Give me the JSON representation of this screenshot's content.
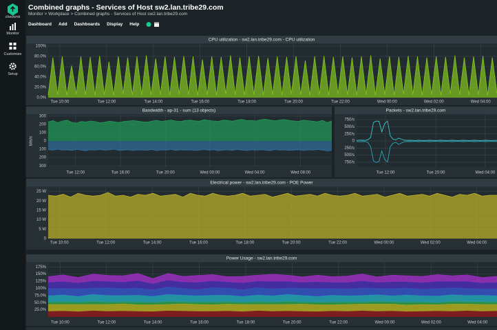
{
  "sidebar": {
    "logo": "checkmk",
    "items": [
      "Monitor",
      "Customize",
      "Setup"
    ]
  },
  "header": {
    "title": "Combined graphs - Services of Host sw2.lan.tribe29.com",
    "breadcrumb": "Monitor > Workplace > Combined graphs - Services of Host sw2.lan.tribe29.com"
  },
  "menu": [
    "Dashboard",
    "Add",
    "Dashboards",
    "Display",
    "Help"
  ],
  "chart_data": [
    {
      "type": "area",
      "title": "CPU utilization - sw2.lan.tribe29.com - CPU utilization",
      "xlim": [
        0,
        96
      ],
      "ylim": [
        0,
        104
      ],
      "yticks": [
        {
          "value": 0,
          "label": "0.0%"
        },
        {
          "value": 20,
          "label": "20.0%"
        },
        {
          "value": 40,
          "label": "40.0%"
        },
        {
          "value": 60,
          "label": "60.0%"
        },
        {
          "value": 80,
          "label": "80.0%"
        },
        {
          "value": 100,
          "label": "100%"
        }
      ],
      "xticks": [
        {
          "value": 2.5,
          "label": "Tue 10:00"
        },
        {
          "value": 12.5,
          "label": "Tue 12:00"
        },
        {
          "value": 22.5,
          "label": "Tue 14:00"
        },
        {
          "value": 32.5,
          "label": "Tue 16:00"
        },
        {
          "value": 42.5,
          "label": "Tue 18:00"
        },
        {
          "value": 52.5,
          "label": "Tue 20:00"
        },
        {
          "value": 62.5,
          "label": "Tue 22:00"
        },
        {
          "value": 72.5,
          "label": "Wed 00:00"
        },
        {
          "value": 82.5,
          "label": "Wed 02:00"
        },
        {
          "value": 92.5,
          "label": "Wed 04:00"
        }
      ],
      "series": [
        {
          "color": "#86c71f",
          "values": [
            5,
            78,
            6,
            80,
            5,
            62,
            7,
            80,
            6,
            79,
            5,
            81,
            6,
            70,
            5,
            80,
            7,
            78,
            5,
            80,
            6,
            82,
            5,
            76,
            6,
            80,
            5,
            79,
            7,
            81,
            6,
            80,
            5,
            74,
            6,
            80,
            5,
            79,
            7,
            82,
            6,
            78,
            5,
            80,
            6,
            81,
            5,
            77,
            6,
            80,
            5,
            79,
            7,
            80,
            6,
            72,
            5,
            80,
            6,
            81,
            5,
            79,
            7,
            80,
            6,
            78,
            5,
            80,
            6,
            82,
            5,
            76,
            6,
            80,
            5,
            79,
            7,
            81,
            6,
            80,
            5,
            78,
            6,
            80,
            5,
            79,
            7,
            82,
            6,
            78,
            5,
            80,
            6,
            81,
            5,
            78,
            8
          ]
        }
      ]
    },
    {
      "type": "area",
      "title": "Bandwidth - ap-31 - sum (13 objects)",
      "ylabel": "bits/s",
      "xlim": [
        0,
        60
      ],
      "ylim": [
        -315,
        315
      ],
      "yticks": [
        {
          "value": -300,
          "label": "300"
        },
        {
          "value": -200,
          "label": "200"
        },
        {
          "value": -100,
          "label": "100"
        },
        0,
        100,
        200,
        300
      ],
      "xticks": [
        {
          "value": 5.8,
          "label": "Tue 12:00"
        },
        {
          "value": 15.3,
          "label": "Tue 16:00"
        },
        {
          "value": 24.8,
          "label": "Tue 20:00"
        },
        {
          "value": 34.2,
          "label": "Wed 00:00"
        },
        {
          "value": 43.7,
          "label": "Wed 04:00"
        },
        {
          "value": 53.4,
          "label": "Wed 08:00"
        }
      ],
      "series": [
        {
          "color": "#1f9d57",
          "values": [
            230,
            245,
            220,
            240,
            250,
            225,
            215,
            235,
            228,
            240,
            232,
            218,
            226,
            238,
            230,
            222,
            235,
            240,
            245,
            238,
            230,
            226,
            240,
            248,
            236,
            244,
            252,
            240,
            234,
            246,
            250,
            242,
            238,
            255,
            248,
            240,
            236,
            250,
            246,
            238,
            252,
            260,
            245,
            248,
            240,
            256,
            262,
            250,
            244,
            252,
            258,
            246,
            240,
            236,
            250,
            244,
            238,
            230,
            248,
            222,
            240
          ]
        },
        {
          "color": "#2f6f9c",
          "values": [
            -105,
            -110,
            -100,
            -112,
            -108,
            -115,
            -102,
            -110,
            -118,
            -106,
            -110,
            -104,
            -112,
            -108,
            -100,
            -114,
            -110,
            -106,
            -116,
            -108,
            -110,
            -112,
            -104,
            -118,
            -108,
            -110,
            -102,
            -114,
            -106,
            -112,
            -108,
            -116,
            -110,
            -104,
            -112,
            -106,
            -118,
            -110,
            -108,
            -114,
            -104,
            -110,
            -116,
            -108,
            -112,
            -106,
            -110,
            -118,
            -104,
            -112,
            -108,
            -114,
            -110,
            -106,
            -116,
            -108,
            -112,
            -104,
            -110,
            -120,
            -115
          ]
        }
      ]
    },
    {
      "type": "line",
      "title": "Packets - sw2.lan.tribe29.com",
      "xlim": [
        0,
        50
      ],
      "ylim": [
        -920,
        920
      ],
      "yticks": [
        {
          "value": -750,
          "label": "750/s"
        },
        {
          "value": -500,
          "label": "500/s"
        },
        {
          "value": -250,
          "label": "250/s"
        },
        0,
        {
          "value": 250,
          "label": "250/s"
        },
        {
          "value": 500,
          "label": "500/s"
        },
        {
          "value": 750,
          "label": "750/s"
        }
      ],
      "xticks": [
        {
          "value": 10.3,
          "label": "Tue 12:00"
        },
        {
          "value": 28.2,
          "label": "Tue 20:00"
        },
        {
          "value": 45.8,
          "label": "Wed 04:00"
        }
      ],
      "series": [
        {
          "color": "#3cc8cc",
          "values": [
            20,
            30,
            25,
            20,
            40,
            120,
            650,
            700,
            690,
            320,
            610,
            700,
            180,
            60,
            40,
            100,
            60,
            30,
            20,
            25,
            20,
            15,
            25,
            20,
            15,
            20,
            25,
            20,
            15,
            20,
            25,
            20,
            15,
            20,
            25,
            20,
            15,
            20,
            25,
            20,
            15,
            20,
            25,
            20,
            15,
            20,
            25,
            20,
            15,
            20,
            20
          ]
        },
        {
          "color": "#2aa9b8",
          "values": [
            -20,
            -30,
            -25,
            -20,
            -50,
            -200,
            -700,
            -760,
            -720,
            -350,
            -650,
            -740,
            -200,
            -80,
            -50,
            -120,
            -70,
            -30,
            -20,
            -25,
            -20,
            -15,
            -25,
            -20,
            -15,
            -20,
            -25,
            -20,
            -15,
            -20,
            -25,
            -20,
            -15,
            -20,
            -25,
            -20,
            -15,
            -20,
            -25,
            -20,
            -15,
            -20,
            -25,
            -20,
            -15,
            -20,
            -25,
            -20,
            -15,
            -20,
            -20
          ]
        }
      ]
    },
    {
      "type": "area",
      "title": "Electrical power - sw2.lan.tribe29.com - POE Power",
      "xlim": [
        0,
        60
      ],
      "ylim": [
        0,
        27
      ],
      "yticks": [
        0,
        {
          "value": 5,
          "label": "5 W"
        },
        {
          "value": 10,
          "label": "10 W"
        },
        {
          "value": 15,
          "label": "15 W"
        },
        {
          "value": 20,
          "label": "20 W"
        },
        {
          "value": 25,
          "label": "25 W"
        }
      ],
      "xticks": [
        {
          "value": 1.5,
          "label": "Tue 10:00"
        },
        {
          "value": 7.7,
          "label": "Tue 12:00"
        },
        {
          "value": 13.9,
          "label": "Tue 14:00"
        },
        {
          "value": 20.1,
          "label": "Tue 16:00"
        },
        {
          "value": 26.3,
          "label": "Tue 18:00"
        },
        {
          "value": 32.5,
          "label": "Tue 20:00"
        },
        {
          "value": 38.7,
          "label": "Tue 22:00"
        },
        {
          "value": 44.9,
          "label": "Wed 00:00"
        },
        {
          "value": 51.1,
          "label": "Wed 02:00"
        },
        {
          "value": 57.3,
          "label": "Wed 04:00"
        }
      ],
      "series": [
        {
          "color": "#c2b62a",
          "values": [
            23,
            22.5,
            23.5,
            22,
            24,
            23,
            22.5,
            23,
            24.5,
            22.5,
            23,
            22,
            23.5,
            23,
            24,
            22.5,
            23,
            23.5,
            22,
            24,
            23,
            22.5,
            24,
            23,
            22.5,
            23,
            24,
            22.5,
            23,
            23.5,
            22,
            23,
            24,
            22.5,
            23,
            23.5,
            22.5,
            24,
            23,
            22.5,
            23,
            24,
            22.5,
            23,
            23.5,
            22,
            23,
            24,
            22.5,
            23,
            23.5,
            22.5,
            24,
            23,
            22,
            23.5,
            23,
            24,
            22.5,
            23,
            23
          ]
        }
      ]
    },
    {
      "type": "area",
      "stacked": true,
      "title": "Power Usage - sw2.lan.tribe29.com",
      "xlim": [
        0,
        30
      ],
      "ylim": [
        0,
        190
      ],
      "yticks": [
        {
          "value": 25,
          "label": "25.0%"
        },
        {
          "value": 50,
          "label": "50.0%"
        },
        {
          "value": 75,
          "label": "75.0%"
        },
        {
          "value": 100,
          "label": "100%"
        },
        {
          "value": 125,
          "label": "125%"
        },
        {
          "value": 150,
          "label": "150%"
        },
        {
          "value": 175,
          "label": "175%"
        }
      ],
      "xticks": [
        {
          "value": 0.8,
          "label": "Tue 10:00"
        },
        {
          "value": 3.9,
          "label": "Tue 12:00"
        },
        {
          "value": 7.0,
          "label": "Tue 14:00"
        },
        {
          "value": 10.1,
          "label": "Tue 16:00"
        },
        {
          "value": 13.2,
          "label": "Tue 18:00"
        },
        {
          "value": 16.3,
          "label": "Tue 20:00"
        },
        {
          "value": 19.4,
          "label": "Tue 22:00"
        },
        {
          "value": 22.5,
          "label": "Wed 00:00"
        },
        {
          "value": 25.6,
          "label": "Wed 02:00"
        },
        {
          "value": 28.7,
          "label": "Wed 04:00"
        }
      ],
      "series": [
        {
          "color": "#8c1c1c",
          "values": [
            20,
            21,
            19,
            22,
            20,
            21,
            20,
            19,
            22,
            21,
            20,
            20,
            21,
            19,
            22,
            20,
            21,
            20,
            19,
            21,
            20,
            22,
            20,
            21,
            19,
            20,
            21,
            20,
            22,
            20,
            21
          ]
        },
        {
          "color": "#b3ae1e",
          "values": [
            24,
            23,
            25,
            22,
            24,
            25,
            23,
            24,
            22,
            25,
            24,
            23,
            24,
            25,
            22,
            24,
            23,
            25,
            24,
            22,
            24,
            23,
            25,
            24,
            23,
            24,
            22,
            25,
            23,
            24,
            23
          ]
        },
        {
          "color": "#2f9d4c",
          "values": [
            8,
            9,
            7,
            10,
            8,
            7,
            9,
            8,
            10,
            7,
            8,
            9,
            8,
            7,
            9,
            8,
            10,
            7,
            8,
            9,
            8,
            7,
            9,
            8,
            10,
            8,
            7,
            9,
            8,
            9,
            8
          ]
        },
        {
          "color": "#22a3b6",
          "values": [
            22,
            24,
            21,
            25,
            23,
            22,
            24,
            21,
            25,
            23,
            22,
            24,
            23,
            21,
            24,
            22,
            25,
            23,
            21,
            24,
            22,
            23,
            24,
            21,
            25,
            22,
            23,
            24,
            22,
            23,
            22
          ]
        },
        {
          "color": "#3454c4",
          "values": [
            25,
            23,
            26,
            22,
            27,
            24,
            25,
            23,
            26,
            24,
            22,
            27,
            25,
            23,
            26,
            24,
            22,
            25,
            27,
            23,
            24,
            26,
            22,
            25,
            24,
            23,
            26,
            24,
            25,
            22,
            24
          ]
        },
        {
          "color": "#4a2fb0",
          "values": [
            22,
            24,
            21,
            25,
            22,
            23,
            26,
            21,
            24,
            22,
            25,
            23,
            21,
            24,
            22,
            26,
            23,
            21,
            24,
            22,
            23,
            25,
            21,
            24,
            22,
            23,
            25,
            22,
            24,
            21,
            23
          ]
        },
        {
          "color": "#9a2fc0",
          "values": [
            20,
            23,
            19,
            24,
            21,
            22,
            25,
            18,
            23,
            20,
            24,
            22,
            19,
            23,
            21,
            25,
            22,
            19,
            23,
            20,
            22,
            24,
            19,
            23,
            21,
            22,
            24,
            20,
            23,
            19,
            21
          ]
        }
      ]
    }
  ]
}
